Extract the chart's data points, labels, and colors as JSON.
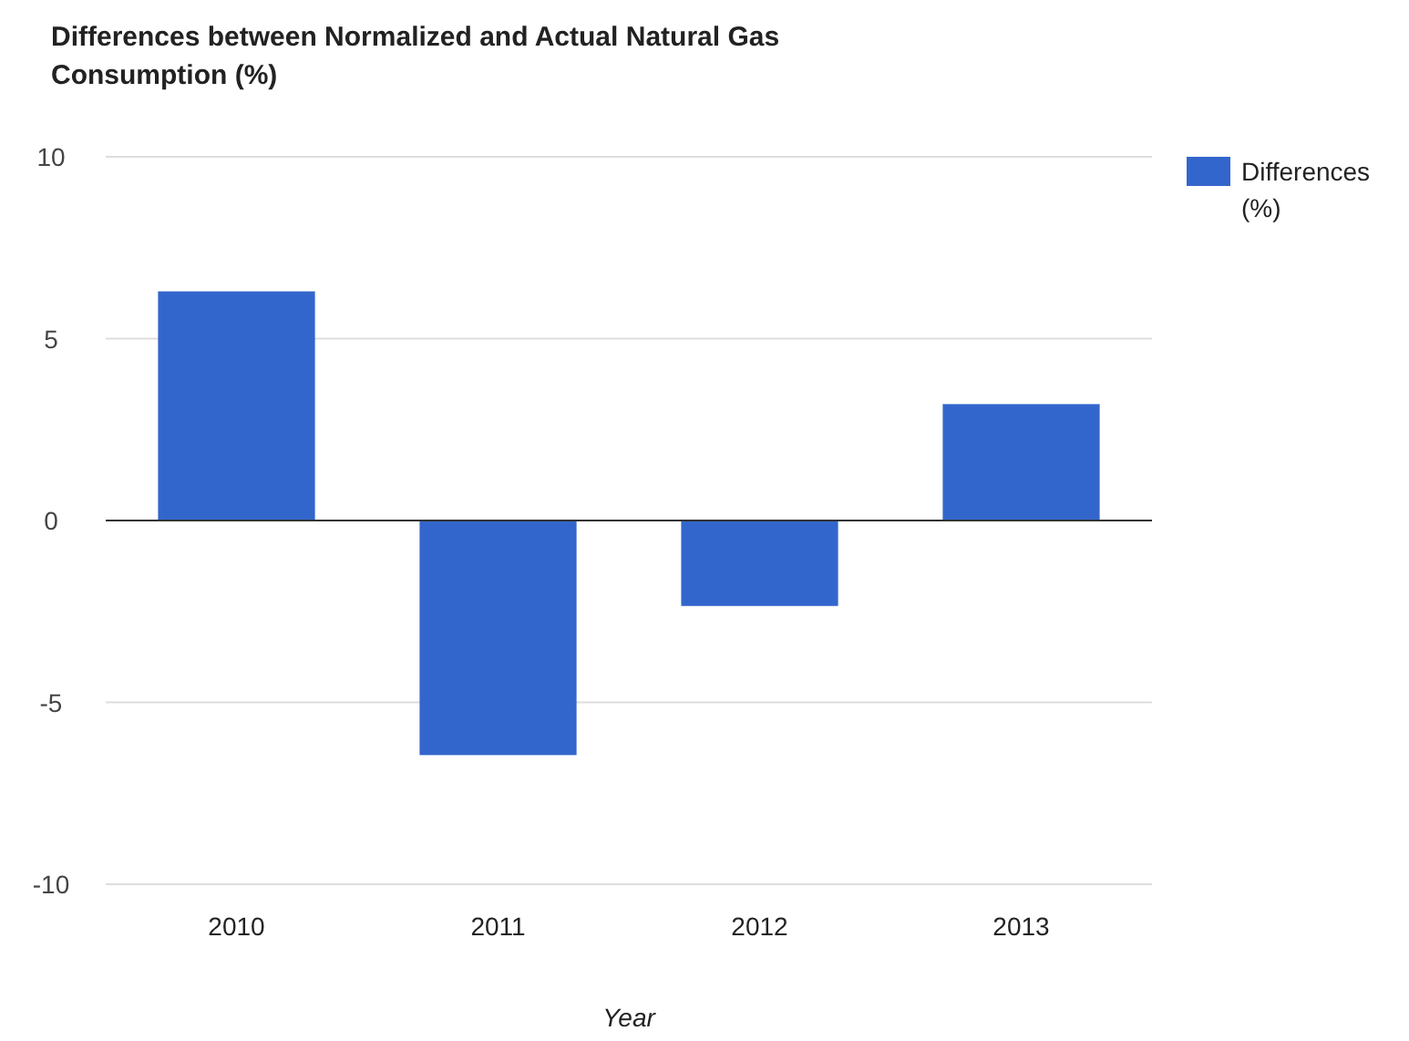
{
  "chart_data": {
    "type": "bar",
    "title": "Differences between Normalized and Actual Natural Gas Consumption (%)",
    "xlabel": "Year",
    "categories": [
      "2010",
      "2011",
      "2012",
      "2013"
    ],
    "series": [
      {
        "name": "Differences (%)",
        "color": "#3366cc",
        "values": [
          6.3,
          -6.45,
          -2.35,
          3.2
        ]
      }
    ],
    "ylim": [
      -10,
      10
    ],
    "yticks": [
      -10,
      -5,
      0,
      5,
      10
    ],
    "grid": "y",
    "legend": "top right"
  }
}
